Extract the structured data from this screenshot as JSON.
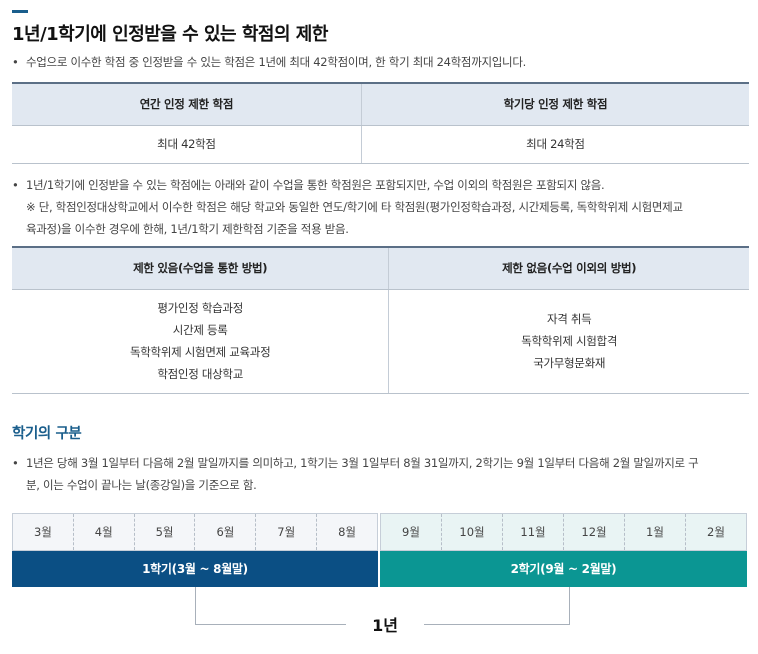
{
  "section1": {
    "title": "1년/1학기에 인정받을 수 있는 학점의 제한",
    "bullet1": "수업으로 이수한 학점 중 인정받을 수 있는 학점은 1년에 최대 42학점이며, 한 학기 최대 24학점까지입니다.",
    "table1": {
      "headers": [
        "연간 인정 제한 학점",
        "학기당 인정 제한 학점"
      ],
      "values": [
        "최대 42학점",
        "최대 24학점"
      ]
    },
    "bullet2_line1": "1년/1학기에 인정받을 수 있는 학점에는 아래와 같이 수업을 통한 학점원은 포함되지만, 수업 이외의 학점원은 포함되지 않음.",
    "bullet2_line2": "※ 단, 학점인정대상학교에서 이수한 학점은 해당 학교와 동일한 연도/학기에 타 학점원(평가인정학습과정, 시간제등록, 독학학위제 시험면제교",
    "bullet2_line3": "육과정)을 이수한 경우에 한해, 1년/1학기 제한학점 기준을 적용 받음.",
    "table2": {
      "headers": [
        "제한 있음(수업을 통한 방법)",
        "제한 없음(수업 이외의 방법)"
      ],
      "left_items": [
        "평가인정 학습과정",
        "시간제 등록",
        "독학학위제 시험면제 교육과정",
        "학점인정 대상학교"
      ],
      "right_items": [
        "자격 취득",
        "독학학위제 시험합격",
        "국가무형문화재"
      ]
    }
  },
  "section2": {
    "title": "학기의 구분",
    "bullet_line1": "1년은 당해 3월 1일부터 다음해 2월 말일까지를 의미하고, 1학기는 3월 1일부터 8월 31일까지, 2학기는 9월 1일부터 다음해 2월 말일까지로 구",
    "bullet_line2": "분, 이는 수업이 끝나는 날(종강일)을 기준으로 함.",
    "semester1_months": [
      "3월",
      "4월",
      "5월",
      "6월",
      "7월",
      "8월"
    ],
    "semester2_months": [
      "9월",
      "10월",
      "11월",
      "12월",
      "1월",
      "2월"
    ],
    "semester1_label": "1학기(3월 ~ 8월말)",
    "semester2_label": "2학기(9월 ~ 2월말)",
    "year_label": "1년"
  },
  "colors": {
    "accent": "#1a5e8c",
    "header_bg": "#e1e8f1",
    "semester1": "#0b4f84",
    "semester2": "#0b9693"
  }
}
